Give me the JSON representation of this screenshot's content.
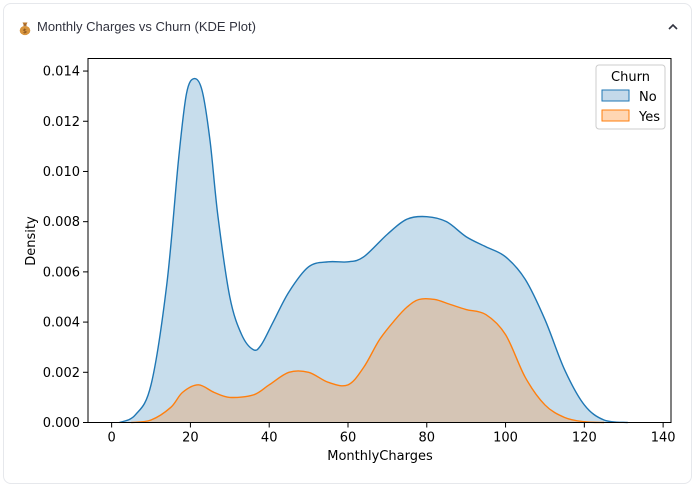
{
  "expander": {
    "title": "Monthly Charges vs Churn (KDE Plot)",
    "icon": "money-bag-icon",
    "toggle_icon": "chevron-up-icon"
  },
  "chart_data": {
    "type": "area",
    "title": "",
    "xlabel": "MonthlyCharges",
    "ylabel": "Density",
    "xlim": [
      -6,
      142
    ],
    "ylim": [
      0,
      0.0145
    ],
    "xticks": [
      0,
      20,
      40,
      60,
      80,
      100,
      120,
      140
    ],
    "yticks": [
      0.0,
      0.002,
      0.004,
      0.006,
      0.008,
      0.01,
      0.012,
      0.014
    ],
    "xtick_labels": [
      "0",
      "20",
      "40",
      "60",
      "80",
      "100",
      "120",
      "140"
    ],
    "ytick_labels": [
      "0.000",
      "0.002",
      "0.004",
      "0.006",
      "0.008",
      "0.010",
      "0.012",
      "0.014"
    ],
    "grid": false,
    "legend": {
      "title": "Churn",
      "placement": "top-right"
    },
    "series": [
      {
        "name": "No",
        "color": "#1f77b4",
        "fill": "#c4d9ea",
        "x": [
          2,
          6,
          10,
          14,
          17,
          19,
          21,
          23,
          25,
          27,
          30,
          33,
          36,
          38,
          41,
          45,
          50,
          55,
          60,
          64,
          70,
          75,
          80,
          85,
          90,
          95,
          100,
          105,
          110,
          115,
          120,
          125,
          131
        ],
        "y": [
          0.0,
          0.0003,
          0.0015,
          0.0055,
          0.0105,
          0.0131,
          0.0137,
          0.0132,
          0.0112,
          0.0082,
          0.005,
          0.0035,
          0.0029,
          0.0031,
          0.004,
          0.0052,
          0.0062,
          0.0064,
          0.0064,
          0.0066,
          0.0075,
          0.0081,
          0.0082,
          0.008,
          0.0074,
          0.007,
          0.0066,
          0.0057,
          0.0041,
          0.0021,
          0.0007,
          0.0001,
          0.0
        ]
      },
      {
        "name": "Yes",
        "color": "#ff7f0e",
        "fill": "#ffd6b3",
        "x": [
          5,
          10,
          15,
          18,
          22,
          26,
          30,
          36,
          40,
          45,
          50,
          55,
          60,
          64,
          68,
          72,
          75,
          78,
          82,
          86,
          90,
          95,
          100,
          105,
          110,
          115,
          120,
          125
        ],
        "y": [
          0.0,
          0.0001,
          0.0006,
          0.0012,
          0.0015,
          0.0012,
          0.001,
          0.0011,
          0.0015,
          0.002,
          0.002,
          0.0016,
          0.0015,
          0.0022,
          0.0033,
          0.0041,
          0.0046,
          0.0049,
          0.0049,
          0.0047,
          0.0045,
          0.0043,
          0.0035,
          0.0018,
          0.0007,
          0.0002,
          3e-05,
          0.0
        ]
      }
    ]
  }
}
